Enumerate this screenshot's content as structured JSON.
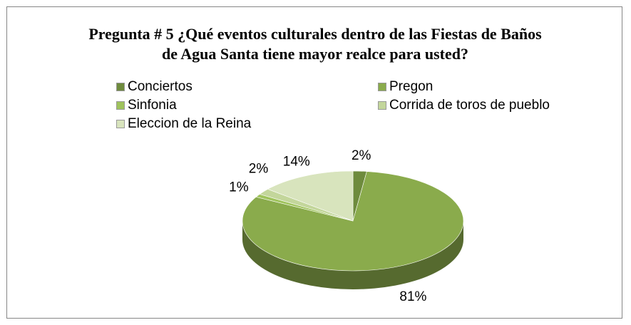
{
  "chart_data": {
    "type": "pie",
    "title": "Pregunta # 5 ¿Qué eventos culturales dentro de las Fiestas de Baños de Agua Santa tiene mayor realce para usted?",
    "categories": [
      "Conciertos",
      "Pregon",
      "Sinfonia",
      "Corrida de toros de pueblo",
      "Eleccion de la Reina"
    ],
    "values": [
      2,
      81,
      1,
      2,
      14
    ],
    "value_labels": [
      "2%",
      "81%",
      "1%",
      "2%",
      "14%"
    ],
    "colors": [
      "#6e8b3d",
      "#8aab4c",
      "#9fc35c",
      "#c3d69b",
      "#d8e4bd"
    ]
  }
}
